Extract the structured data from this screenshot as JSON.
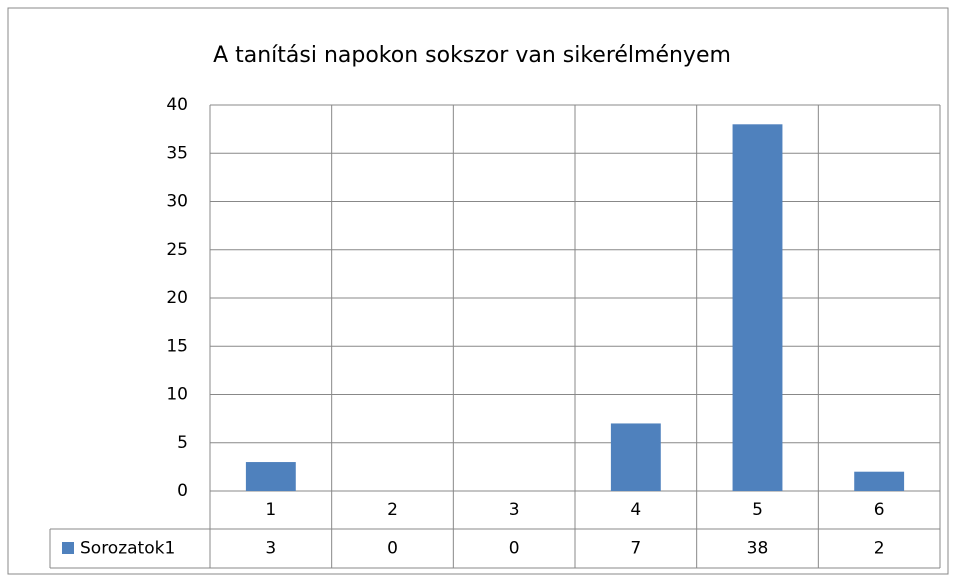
{
  "chart_data": {
    "type": "bar",
    "title": "A tanítási napokon sokszor van sikerélményem",
    "categories": [
      "1",
      "2",
      "3",
      "4",
      "5",
      "6"
    ],
    "series": [
      {
        "name": "Sorozatok1",
        "color": "#4f81bd",
        "values": [
          3,
          0,
          0,
          7,
          38,
          2
        ]
      }
    ],
    "ylim": [
      0,
      40
    ],
    "yticks": [
      0,
      5,
      10,
      15,
      20,
      25,
      30,
      35,
      40
    ],
    "grid": true,
    "data_table": true
  }
}
